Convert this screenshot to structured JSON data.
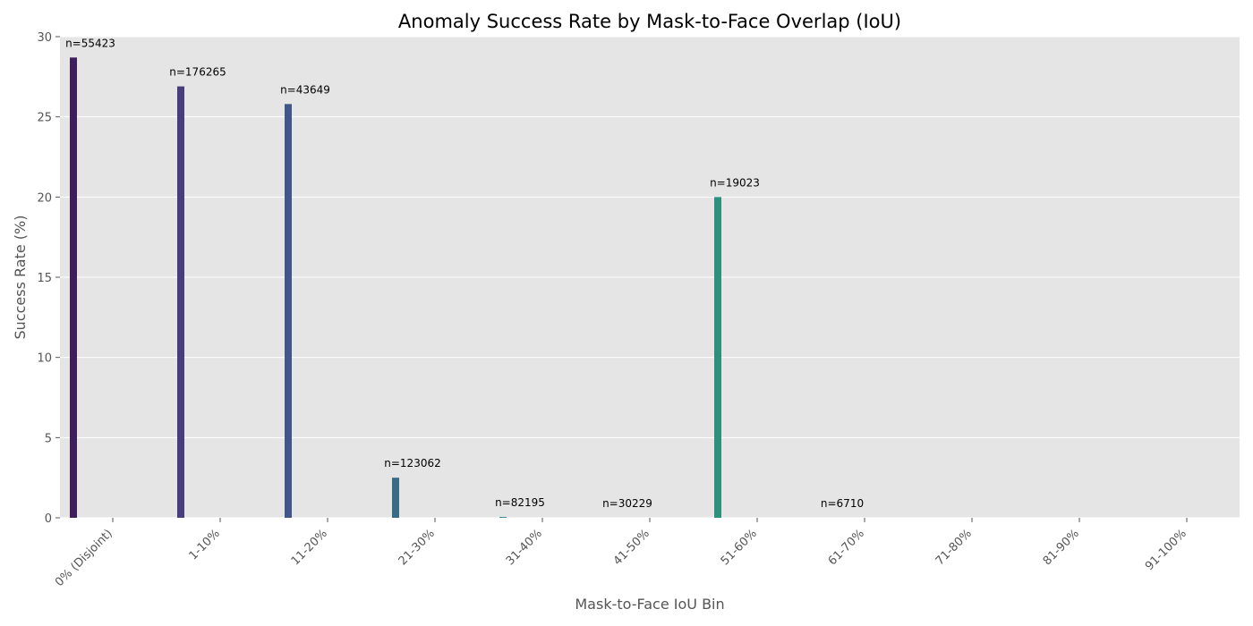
{
  "chart_data": {
    "type": "bar",
    "title": "Anomaly Success Rate by Mask-to-Face Overlap (IoU)",
    "xlabel": "Mask-to-Face IoU Bin",
    "ylabel": "Success Rate (%)",
    "ylim": [
      0,
      30
    ],
    "yticks": [
      "0",
      "5",
      "10",
      "15",
      "20",
      "25",
      "30"
    ],
    "grid": true,
    "categories": [
      "0% (Disjoint)",
      "1-10%",
      "11-20%",
      "21-30%",
      "31-40%",
      "41-50%",
      "51-60%",
      "61-70%",
      "71-80%",
      "81-90%",
      "91-100%"
    ],
    "values": [
      28.7,
      26.9,
      25.8,
      2.5,
      0.05,
      0.0,
      20.0,
      0.0,
      null,
      null,
      null
    ],
    "bar_labels": [
      "n=55423",
      "n=176265",
      "n=43649",
      "n=123062",
      "n=82195",
      "n=30229",
      "n=19023",
      "n=6710",
      "",
      "",
      ""
    ],
    "colors": [
      "#3e1f5b",
      "#483d7d",
      "#41578a",
      "#3a6b85",
      "#2f7f8c",
      "#2a8f8a",
      "#2e8f7c",
      "#3aa371",
      "#5fb55f",
      "#8fcb4a",
      "#c7d83d"
    ]
  }
}
